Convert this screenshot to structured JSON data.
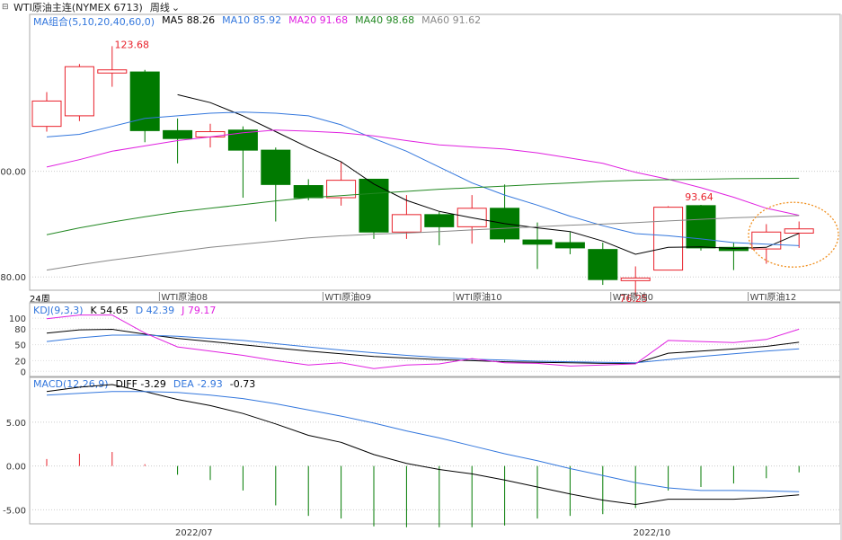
{
  "header": {
    "instrument": "WTI原油主连(NYMEX 6713)",
    "period": "周线"
  },
  "colors": {
    "up": "#e8212b",
    "down": "#007a00",
    "ma5": "#000000",
    "ma10": "#3377dd",
    "ma20": "#e020e0",
    "ma40": "#228822",
    "ma60": "#888888",
    "kdj_k": "#000000",
    "kdj_d": "#3377dd",
    "kdj_j": "#e020e0",
    "macd_diff": "#000000",
    "macd_dea": "#3377dd",
    "highlight_circle": "#f09020"
  },
  "panels": {
    "ma_legend": {
      "group": "MA组合(5,10,20,40,60,0)",
      "ma5": "MA5 88.26",
      "ma10": "MA10 85.92",
      "ma20": "MA20 91.68",
      "ma40": "MA40 98.68",
      "ma60": "MA60 91.62"
    },
    "kdj_legend": {
      "name": "KDJ(9,3,3)",
      "k": "K 54.65",
      "d": "D 42.39",
      "j": "J 79.17"
    },
    "macd_legend": {
      "name": "MACD(12,26,9)",
      "diff": "DIFF -3.29",
      "dea": "DEA -2.93",
      "macd": "-0.73"
    },
    "cycle_label": "24周"
  },
  "chart_data": [
    {
      "type": "candlestick",
      "title": "WTI原油主连(NYMEX 6713)",
      "ylim": [
        78,
        128
      ],
      "y_ticks": [
        "100.00",
        "80.00"
      ],
      "y_tick_values": [
        100,
        80
      ],
      "max_label": "123.68",
      "local_high_label": "93.64",
      "min_label": "76.25",
      "contract_labels": [
        "WTI原油08",
        "WTI原油09",
        "WTI原油10",
        "WTI原油0",
        "WTI原油12"
      ],
      "contract_label_index": [
        3.5,
        8.5,
        12.5,
        17.3,
        21.5
      ],
      "candles": [
        {
          "o": 108.5,
          "c": 113.3,
          "h": 115,
          "l": 107.5
        },
        {
          "o": 110.5,
          "c": 119.8,
          "h": 120.3,
          "l": 109.5
        },
        {
          "o": 118.6,
          "c": 119.2,
          "h": 123.68,
          "l": 116
        },
        {
          "o": 118.8,
          "c": 107.7,
          "h": 119.2,
          "l": 105.5
        },
        {
          "o": 107.7,
          "c": 106.2,
          "h": 110,
          "l": 101.5
        },
        {
          "o": 106.5,
          "c": 107.5,
          "h": 109,
          "l": 104.5
        },
        {
          "o": 107.8,
          "c": 104,
          "h": 108.5,
          "l": 95
        },
        {
          "o": 104,
          "c": 97.5,
          "h": 104.5,
          "l": 90.5
        },
        {
          "o": 97.3,
          "c": 95,
          "h": 98.5,
          "l": 94.5
        },
        {
          "o": 95,
          "c": 98.3,
          "h": 101.8,
          "l": 93.5
        },
        {
          "o": 98.5,
          "c": 88.5,
          "h": 98.5,
          "l": 87.2
        },
        {
          "o": 88.5,
          "c": 91.8,
          "h": 95.5,
          "l": 87.2
        },
        {
          "o": 91.8,
          "c": 89.5,
          "h": 92.3,
          "l": 86
        },
        {
          "o": 89.5,
          "c": 93,
          "h": 95.5,
          "l": 86.3
        },
        {
          "o": 93,
          "c": 87.2,
          "h": 97.5,
          "l": 86.5
        },
        {
          "o": 87,
          "c": 86.2,
          "h": 90.3,
          "l": 81.5
        },
        {
          "o": 86.5,
          "c": 85.5,
          "h": 88.5,
          "l": 84.3
        },
        {
          "o": 85.2,
          "c": 79.5,
          "h": 86.5,
          "l": 78.5
        },
        {
          "o": 79.3,
          "c": 79.8,
          "h": 82,
          "l": 76.25
        },
        {
          "o": 81.3,
          "c": 93.2,
          "h": 93.4,
          "l": 81.3
        },
        {
          "o": 93.5,
          "c": 85.5,
          "h": 93.64,
          "l": 85
        },
        {
          "o": 85.6,
          "c": 85,
          "h": 86.5,
          "l": 81.3
        },
        {
          "o": 85.3,
          "c": 88.5,
          "h": 90,
          "l": 82.5
        },
        {
          "o": 88.3,
          "c": 89.1,
          "h": 90.5,
          "l": 85.5
        }
      ],
      "series": [
        {
          "name": "MA5",
          "values": [
            null,
            null,
            null,
            null,
            114.5,
            113,
            110.5,
            107.5,
            104.5,
            101.8,
            97.6,
            94.5,
            92.4,
            91.2,
            90.1,
            89.3,
            88.6,
            86.8,
            84.3,
            85.6,
            85.7,
            85.4,
            85.6,
            88.26
          ]
        },
        {
          "name": "MA10",
          "values": [
            106.5,
            107,
            108.5,
            110,
            110.5,
            111,
            111.2,
            111,
            110.5,
            108.8,
            106.2,
            103.8,
            100.8,
            97.8,
            95.5,
            93.6,
            91.5,
            89.7,
            88.2,
            87.8,
            87.2,
            86.5,
            86.2,
            85.92
          ]
        },
        {
          "name": "MA20",
          "values": [
            100.8,
            102.2,
            103.8,
            104.8,
            105.8,
            106.5,
            107.3,
            107.8,
            107.6,
            107.3,
            106.7,
            105.8,
            105,
            104.6,
            104.2,
            103.5,
            102.5,
            101.5,
            99.8,
            98.5,
            96.9,
            95.1,
            93,
            91.68
          ]
        },
        {
          "name": "MA40",
          "values": [
            88,
            89.3,
            90.4,
            91.4,
            92.3,
            93,
            93.7,
            94.4,
            95,
            95.4,
            95.8,
            96.2,
            96.6,
            96.9,
            97.2,
            97.5,
            97.8,
            98.1,
            98.3,
            98.4,
            98.5,
            98.6,
            98.65,
            98.68
          ]
        },
        {
          "name": "MA60",
          "values": [
            81.3,
            82.3,
            83.2,
            84,
            84.8,
            85.6,
            86.2,
            86.8,
            87.4,
            87.8,
            88.1,
            88.3,
            88.6,
            88.9,
            89.2,
            89.5,
            89.8,
            90,
            90.3,
            90.6,
            90.9,
            91.2,
            91.4,
            91.62
          ]
        }
      ]
    },
    {
      "type": "line",
      "title": "KDJ(9,3,3)",
      "ylim": [
        -8,
        112
      ],
      "y_ticks": [
        "100",
        "80",
        "50",
        "20",
        "0"
      ],
      "y_tick_values": [
        100,
        80,
        50,
        20,
        0
      ],
      "series": [
        {
          "name": "K",
          "values": [
            72,
            78,
            79,
            70,
            62,
            56,
            50,
            44,
            38,
            33,
            28,
            25,
            22,
            20,
            18,
            17,
            16,
            15,
            15,
            34,
            38,
            42,
            47,
            54.65
          ]
        },
        {
          "name": "D",
          "values": [
            56,
            63,
            68,
            68,
            66,
            62,
            58,
            52,
            46,
            40,
            35,
            30,
            26,
            23,
            21,
            19,
            18,
            17,
            16,
            22,
            28,
            33,
            38,
            42.39
          ]
        },
        {
          "name": "J",
          "values": [
            99,
            106,
            106,
            72,
            46,
            38,
            30,
            20,
            12,
            16,
            5,
            12,
            14,
            24,
            16,
            15,
            10,
            12,
            14,
            58,
            56,
            54,
            60,
            79.17
          ]
        }
      ]
    },
    {
      "type": "bar",
      "title": "MACD(12,26,9)",
      "ylim": [
        -6.3,
        9.3
      ],
      "y_ticks": [
        "5.00",
        "0.00",
        "-5.00"
      ],
      "y_tick_values": [
        5,
        0,
        -5
      ],
      "x_tick_labels": [
        "2022/07",
        "2022/10"
      ],
      "x_tick_index": [
        4.5,
        18.5
      ],
      "series": [
        {
          "name": "DIFF",
          "values": [
            8.5,
            9,
            9.3,
            8.5,
            7.6,
            6.9,
            6,
            4.8,
            3.5,
            2.7,
            1.3,
            0.3,
            -0.4,
            -0.9,
            -1.6,
            -2.4,
            -3.2,
            -3.9,
            -4.4,
            -3.8,
            -3.8,
            -3.8,
            -3.6,
            -3.29
          ]
        },
        {
          "name": "DEA",
          "values": [
            8.1,
            8.3,
            8.5,
            8.5,
            8.4,
            8.1,
            7.7,
            7.1,
            6.4,
            5.7,
            4.9,
            4,
            3.2,
            2.3,
            1.4,
            0.6,
            -0.3,
            -1.1,
            -1.9,
            -2.5,
            -2.8,
            -2.8,
            -2.85,
            -2.93
          ]
        },
        {
          "name": "MACD",
          "values": [
            0.8,
            1.4,
            1.6,
            0.2,
            -1,
            -1.6,
            -2.8,
            -4.5,
            -5.7,
            -6,
            -6.9,
            -7,
            -7,
            -7,
            -6.8,
            -6,
            -5.7,
            -5.5,
            -4.8,
            -2.8,
            -2.4,
            -2,
            -1.4,
            -0.73
          ]
        }
      ]
    }
  ]
}
